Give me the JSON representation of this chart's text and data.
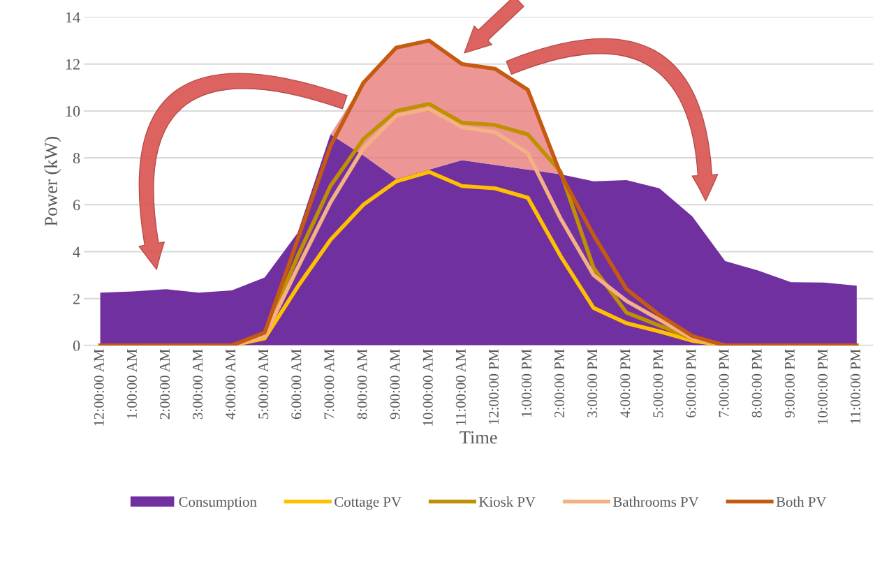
{
  "chart_data": {
    "type": "line",
    "xlabel": "Time",
    "ylabel": "Power (kW)",
    "categories": [
      "12:00:00 AM",
      "1:00:00 AM",
      "2:00:00 AM",
      "3:00:00 AM",
      "4:00:00 AM",
      "5:00:00 AM",
      "6:00:00 AM",
      "7:00:00 AM",
      "8:00:00 AM",
      "9:00:00 AM",
      "10:00:00 AM",
      "11:00:00 AM",
      "12:00:00 PM",
      "1:00:00 PM",
      "2:00:00 PM",
      "3:00:00 PM",
      "4:00:00 PM",
      "5:00:00 PM",
      "6:00:00 PM",
      "7:00:00 PM",
      "8:00:00 PM",
      "9:00:00 PM",
      "10:00:00 PM",
      "11:00:00 PM"
    ],
    "series": [
      {
        "name": "Consumption",
        "type": "area",
        "color": "#7030a0",
        "values": [
          2.25,
          2.3,
          2.4,
          2.25,
          2.35,
          2.9,
          4.8,
          9.0,
          8.1,
          7.1,
          7.5,
          7.9,
          7.7,
          7.5,
          7.3,
          7.0,
          7.05,
          6.7,
          5.5,
          3.6,
          3.2,
          2.7,
          2.68,
          2.55
        ]
      },
      {
        "name": "Cottage PV",
        "color": "#ffc000",
        "values": [
          null,
          null,
          null,
          null,
          0,
          0.3,
          2.5,
          4.5,
          6.0,
          7.0,
          7.4,
          6.8,
          6.7,
          6.3,
          3.8,
          1.6,
          0.95,
          0.6,
          0.2,
          0,
          null,
          null,
          null,
          null
        ]
      },
      {
        "name": "Kiosk PV",
        "color": "#bf9000",
        "values": [
          null,
          null,
          null,
          null,
          0,
          0.5,
          3.8,
          6.8,
          8.8,
          10.0,
          10.3,
          9.5,
          9.4,
          9.0,
          7.4,
          3.3,
          1.4,
          0.85,
          0.3,
          0,
          null,
          null,
          null,
          null
        ]
      },
      {
        "name": "Bathrooms PV",
        "color": "#f4b183",
        "values": [
          null,
          null,
          null,
          null,
          0,
          0.4,
          3.3,
          6.1,
          8.4,
          9.8,
          10.1,
          9.3,
          9.1,
          8.2,
          5.4,
          3.0,
          1.9,
          1.1,
          0.3,
          0,
          null,
          null,
          null,
          null
        ]
      },
      {
        "name": "Both PV",
        "color": "#c55a11",
        "values": [
          0,
          0,
          0,
          0,
          0,
          0.55,
          4.5,
          8.5,
          11.2,
          12.7,
          13.0,
          12.0,
          11.8,
          10.9,
          7.3,
          4.7,
          2.4,
          1.3,
          0.4,
          0,
          0,
          0,
          0,
          0
        ],
        "lower": [
          null,
          null,
          null,
          null,
          null,
          null,
          null,
          9.0,
          8.1,
          7.1,
          7.5,
          7.9,
          7.7,
          7.5,
          7.3,
          null,
          null,
          null,
          null,
          null,
          null,
          null,
          null,
          null
        ],
        "upper": [
          null,
          null,
          null,
          null,
          null,
          null,
          null,
          9.0,
          11.2,
          12.7,
          13.0,
          12.0,
          11.8,
          10.9,
          7.3,
          null,
          null,
          null,
          null,
          null,
          null,
          null,
          null,
          null
        ]
      }
    ],
    "ylim": [
      0,
      14
    ],
    "yticks": [
      0,
      2,
      4,
      6,
      8,
      10,
      12,
      14
    ],
    "grid": "y",
    "legend": "bottom"
  }
}
